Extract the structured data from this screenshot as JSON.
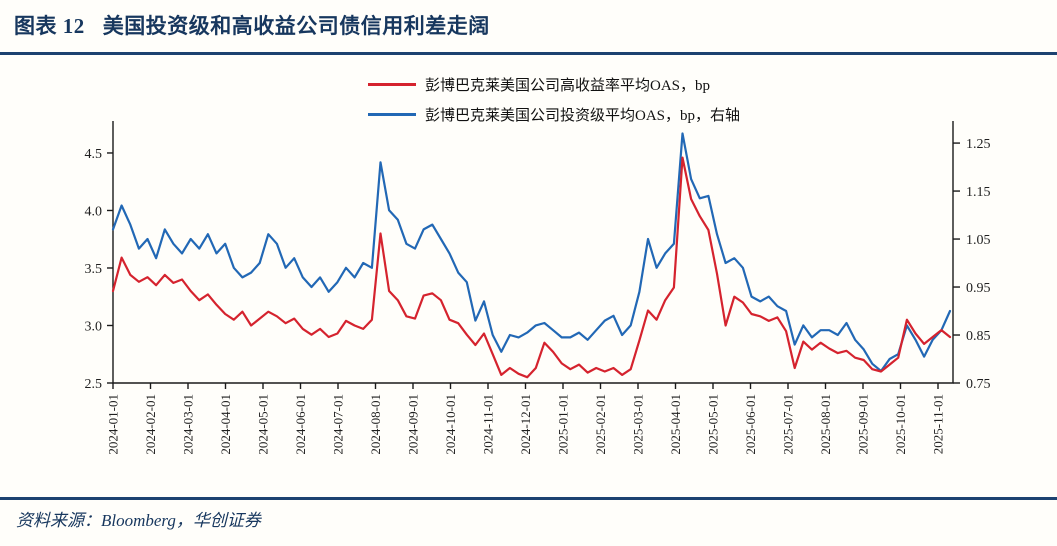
{
  "figure": {
    "label": "图表 12",
    "title": "美国投资级和高收益公司债信用利差走阔",
    "source": "资料来源：Bloomberg，华创证券"
  },
  "colors": {
    "navy_accent": "#17375e",
    "rule_navy": "#1d4270",
    "hy_red": "#d5232e",
    "ig_blue": "#2268b5",
    "axis": "#1a1a1a"
  },
  "chart_data": {
    "type": "line",
    "title": "美国投资级和高收益公司债信用利差走阔",
    "x_start": "2024-01-01",
    "x_step_days": 7,
    "x_tick_labels": [
      "2024-01-01",
      "2024-02-01",
      "2024-03-01",
      "2024-04-01",
      "2024-05-01",
      "2024-06-01",
      "2024-07-01",
      "2024-08-01",
      "2024-09-01",
      "2024-10-01",
      "2024-11-01",
      "2024-12-01",
      "2025-01-01",
      "2025-02-01",
      "2025-03-01",
      "2025-04-01",
      "2025-05-01",
      "2025-06-01",
      "2025-07-01",
      "2025-08-01",
      "2025-09-01",
      "2025-10-01",
      "2025-11-01"
    ],
    "left_axis": {
      "range": [
        2.5,
        4.778
      ],
      "ticks": [
        {
          "value": 2.5,
          "label": "2.5"
        },
        {
          "value": 3.0,
          "label": "3.0"
        },
        {
          "value": 3.5,
          "label": "3.5"
        },
        {
          "value": 4.0,
          "label": "4.0"
        },
        {
          "value": 4.5,
          "label": "4.5"
        }
      ]
    },
    "right_axis": {
      "range": [
        0.75,
        1.296
      ],
      "ticks": [
        {
          "value": 0.75,
          "label": "0.75"
        },
        {
          "value": 0.85,
          "label": "0.85"
        },
        {
          "value": 0.95,
          "label": "0.95"
        },
        {
          "value": 1.05,
          "label": "1.05"
        },
        {
          "value": 1.15,
          "label": "1.15"
        },
        {
          "value": 1.25,
          "label": "1.25"
        }
      ]
    },
    "legend": [
      {
        "id": "hy",
        "label": "彭博巴克莱美国公司高收益率平均OAS，bp",
        "color": "#d5232e"
      },
      {
        "id": "ig",
        "label": "彭博巴克莱美国公司投资级平均OAS，bp，右轴",
        "color": "#2268b5"
      }
    ],
    "series": [
      {
        "id": "ig",
        "name": "彭博巴克莱美国公司投资级平均OAS，bp，右轴",
        "axis": "right",
        "color": "#2268b5",
        "values": [
          1.07,
          1.12,
          1.08,
          1.03,
          1.05,
          1.01,
          1.07,
          1.04,
          1.02,
          1.05,
          1.03,
          1.06,
          1.02,
          1.04,
          0.99,
          0.97,
          0.98,
          1.0,
          1.06,
          1.04,
          0.99,
          1.01,
          0.97,
          0.95,
          0.97,
          0.94,
          0.96,
          0.99,
          0.97,
          1.0,
          0.99,
          1.21,
          1.11,
          1.09,
          1.04,
          1.03,
          1.07,
          1.08,
          1.05,
          1.02,
          0.98,
          0.96,
          0.88,
          0.92,
          0.85,
          0.815,
          0.85,
          0.845,
          0.855,
          0.87,
          0.875,
          0.86,
          0.845,
          0.845,
          0.855,
          0.84,
          0.86,
          0.88,
          0.89,
          0.85,
          0.87,
          0.94,
          1.05,
          0.99,
          1.02,
          1.04,
          1.27,
          1.175,
          1.135,
          1.14,
          1.06,
          1.0,
          1.01,
          0.99,
          0.93,
          0.92,
          0.93,
          0.91,
          0.9,
          0.83,
          0.87,
          0.845,
          0.86,
          0.86,
          0.85,
          0.875,
          0.84,
          0.82,
          0.79,
          0.775,
          0.8,
          0.81,
          0.87,
          0.84,
          0.805,
          0.84,
          0.86,
          0.9
        ]
      },
      {
        "id": "hy",
        "name": "彭博巴克莱美国公司高收益率平均OAS，bp",
        "axis": "left",
        "color": "#d5232e",
        "values": [
          3.3,
          3.59,
          3.44,
          3.38,
          3.42,
          3.35,
          3.44,
          3.37,
          3.4,
          3.3,
          3.22,
          3.27,
          3.18,
          3.1,
          3.05,
          3.12,
          3.0,
          3.06,
          3.12,
          3.08,
          3.02,
          3.06,
          2.97,
          2.92,
          2.97,
          2.9,
          2.93,
          3.04,
          3.0,
          2.97,
          3.05,
          3.8,
          3.3,
          3.22,
          3.08,
          3.06,
          3.26,
          3.28,
          3.22,
          3.05,
          3.02,
          2.92,
          2.83,
          2.93,
          2.75,
          2.57,
          2.63,
          2.58,
          2.55,
          2.63,
          2.85,
          2.77,
          2.67,
          2.62,
          2.66,
          2.59,
          2.63,
          2.6,
          2.63,
          2.57,
          2.62,
          2.87,
          3.13,
          3.05,
          3.22,
          3.33,
          4.46,
          4.1,
          3.95,
          3.83,
          3.45,
          3.0,
          3.25,
          3.2,
          3.1,
          3.08,
          3.04,
          3.07,
          2.95,
          2.63,
          2.86,
          2.79,
          2.85,
          2.8,
          2.76,
          2.78,
          2.72,
          2.7,
          2.62,
          2.6,
          2.66,
          2.72,
          3.05,
          2.93,
          2.84,
          2.9,
          2.96,
          2.9
        ]
      }
    ]
  }
}
